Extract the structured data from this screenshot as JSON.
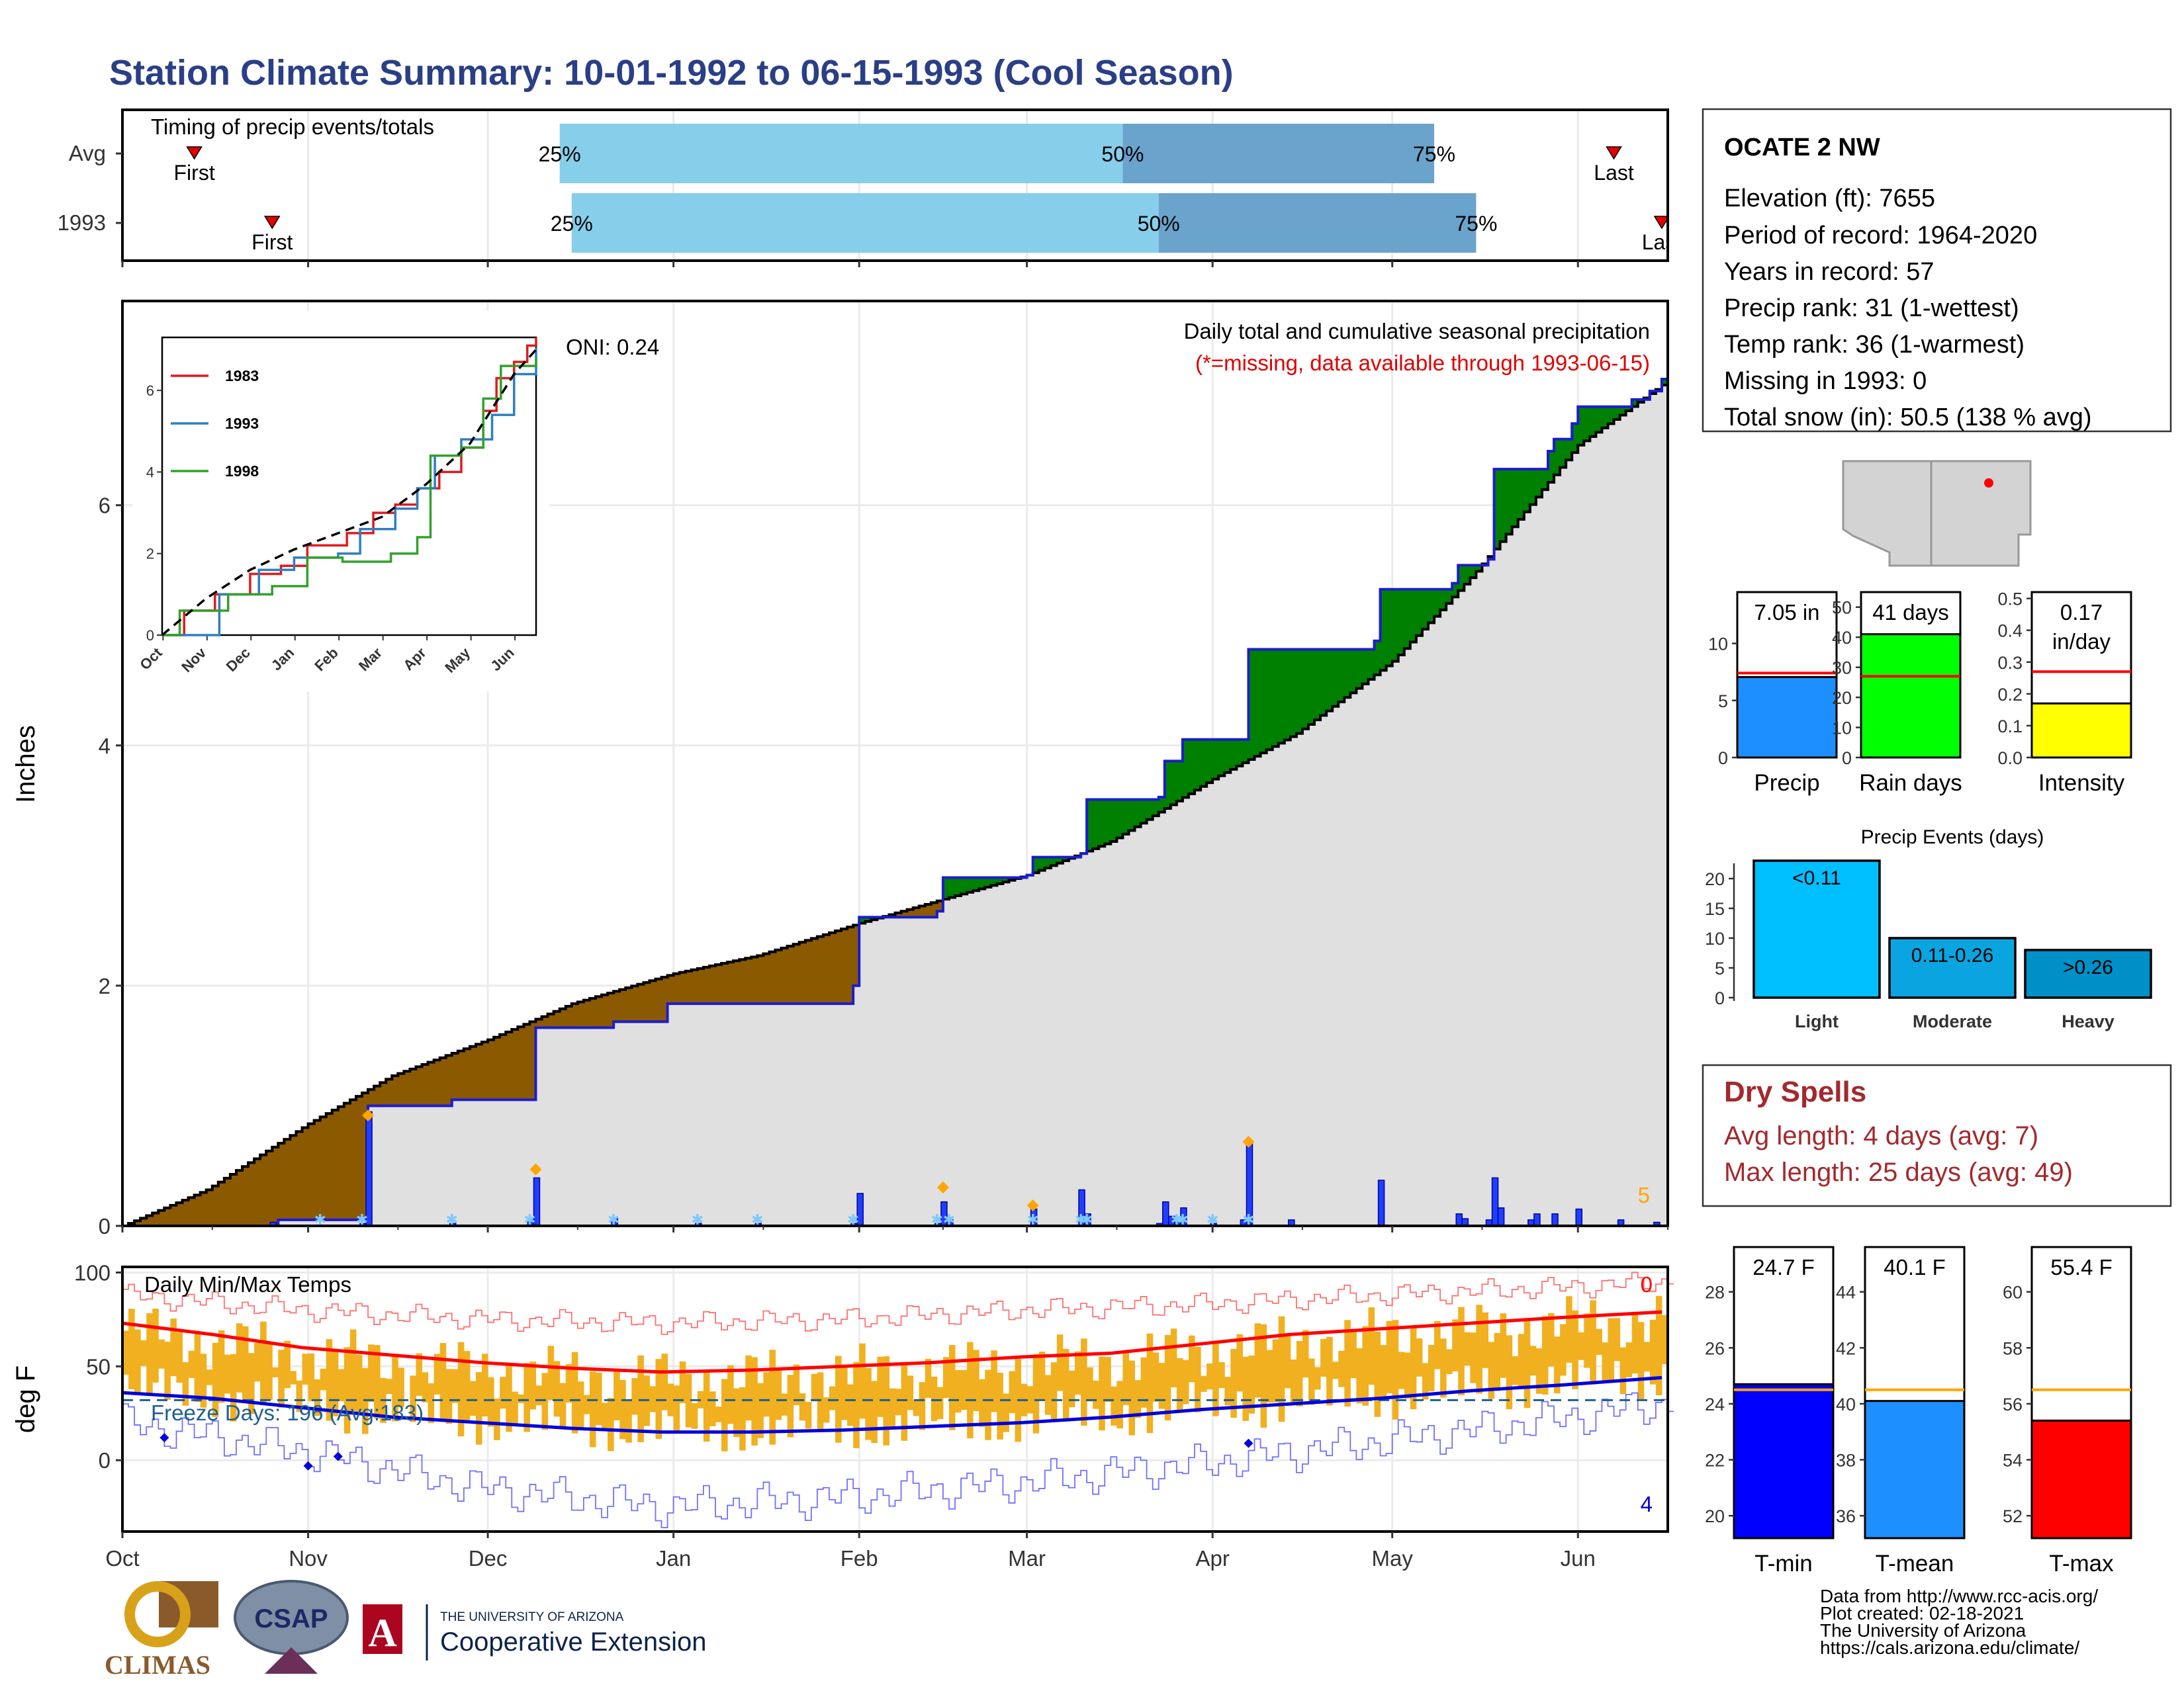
{
  "page": {
    "title": "Station Climate Summary: 10-01-1992 to 06-15-1993 (Cool Season)",
    "credits": [
      "Data from http://www.rcc-acis.org/",
      "Plot created: 02-18-2021",
      "The University of Arizona",
      "https://cals.arizona.edu/climate/"
    ],
    "logos": {
      "climas": "CLIMAS",
      "csap": "CSAP",
      "ua_line1": "THE UNIVERSITY OF ARIZONA",
      "ua_line2": "Cooperative Extension"
    },
    "colors": {
      "title": "#2a3f86",
      "surplus": "#008000",
      "deficit": "#8b5a00",
      "cumulative_fill": "#e0e0e0",
      "daily_bars": "#1f3fff",
      "temp_bars": "#f0b020",
      "dry_spells": "#a3292e"
    }
  },
  "chart_data": [
    {
      "id": "timing",
      "type": "bar",
      "title": "Timing of precip events/totals",
      "rows": [
        {
          "label": "Avg",
          "first_marker": "First",
          "last_marker": "Last",
          "first_date": "1992-10-13",
          "last_date": "1993-06-07",
          "p25": "1992-12-13",
          "p50": "1993-03-17",
          "p75": "1993-05-08"
        },
        {
          "label": "1993",
          "first_marker": "First",
          "last_marker": "Last",
          "first_date": "1992-10-26",
          "last_date": "1993-06-15",
          "p25": "1992-12-15",
          "p50": "1993-03-23",
          "p75": "1993-05-15"
        }
      ],
      "pct_labels": [
        "25%",
        "50%",
        "75%"
      ],
      "colors": {
        "light": "#87ceeb",
        "dark": "#6aa3cc",
        "marker": "#e00000"
      }
    },
    {
      "id": "precip",
      "type": "area",
      "title": "Daily total and cumulative seasonal precipitation",
      "subtitle": "(*=missing, data available through 1993-06-15)",
      "oni": "ONI: 0.24",
      "ylabel": "Inches",
      "ylim": [
        0,
        7.7
      ],
      "yticks": [
        0,
        2,
        4,
        6
      ],
      "xlabels": [
        "Oct",
        "Nov",
        "Dec",
        "Jan",
        "Feb",
        "Mar",
        "Apr",
        "May",
        "Jun"
      ],
      "corner_label": "5",
      "observed_cumulative": [
        [
          "1992-10-01",
          0
        ],
        [
          "1992-10-27",
          0.05
        ],
        [
          "1992-11-10",
          0.05
        ],
        [
          "1992-11-11",
          1.0
        ],
        [
          "1992-11-25",
          1.05
        ],
        [
          "1992-12-08",
          1.05
        ],
        [
          "1992-12-09",
          1.65
        ],
        [
          "1992-12-22",
          1.7
        ],
        [
          "1992-12-31",
          1.85
        ],
        [
          "1993-01-31",
          2.0
        ],
        [
          "1993-02-01",
          2.57
        ],
        [
          "1993-02-14",
          2.62
        ],
        [
          "1993-02-15",
          2.9
        ],
        [
          "1993-03-01",
          2.92
        ],
        [
          "1993-03-02",
          3.07
        ],
        [
          "1993-03-10",
          3.1
        ],
        [
          "1993-03-11",
          3.55
        ],
        [
          "1993-03-23",
          3.57
        ],
        [
          "1993-03-24",
          3.87
        ],
        [
          "1993-03-26",
          3.87
        ],
        [
          "1993-03-27",
          4.05
        ],
        [
          "1993-04-06",
          4.05
        ],
        [
          "1993-04-07",
          4.8
        ],
        [
          "1993-04-28",
          4.87
        ],
        [
          "1993-04-29",
          5.3
        ],
        [
          "1993-05-11",
          5.35
        ],
        [
          "1993-05-12",
          5.5
        ],
        [
          "1993-05-17",
          5.55
        ],
        [
          "1993-05-18",
          6.3
        ],
        [
          "1993-05-27",
          6.45
        ],
        [
          "1993-05-28",
          6.55
        ],
        [
          "1993-05-31",
          6.68
        ],
        [
          "1993-06-01",
          6.82
        ],
        [
          "1993-06-10",
          6.88
        ],
        [
          "1993-06-13",
          6.95
        ],
        [
          "1993-06-15",
          7.05
        ]
      ],
      "average_cumulative": [
        [
          "1992-10-01",
          0
        ],
        [
          "1992-10-15",
          0.3
        ],
        [
          "1992-11-01",
          0.85
        ],
        [
          "1992-11-15",
          1.25
        ],
        [
          "1992-12-01",
          1.55
        ],
        [
          "1992-12-15",
          1.85
        ],
        [
          "1993-01-01",
          2.1
        ],
        [
          "1993-01-15",
          2.25
        ],
        [
          "1993-02-01",
          2.52
        ],
        [
          "1993-02-15",
          2.72
        ],
        [
          "1993-03-01",
          2.92
        ],
        [
          "1993-03-15",
          3.2
        ],
        [
          "1993-04-01",
          3.72
        ],
        [
          "1993-04-15",
          4.1
        ],
        [
          "1993-05-01",
          4.7
        ],
        [
          "1993-05-15",
          5.45
        ],
        [
          "1993-06-01",
          6.5
        ],
        [
          "1993-06-15",
          7.0
        ]
      ],
      "daily_totals": [
        [
          "1992-10-26",
          0.03
        ],
        [
          "1992-11-10",
          0.02
        ],
        [
          "1992-11-11",
          0.95
        ],
        [
          "1992-11-25",
          0.02
        ],
        [
          "1992-12-08",
          0.05
        ],
        [
          "1992-12-09",
          0.4
        ],
        [
          "1992-12-22",
          0.06
        ],
        [
          "1993-01-05",
          0.02
        ],
        [
          "1993-01-15",
          0.02
        ],
        [
          "1993-01-31",
          0.02
        ],
        [
          "1993-02-01",
          0.27
        ],
        [
          "1993-02-14",
          0.02
        ],
        [
          "1993-02-15",
          0.2
        ],
        [
          "1993-02-16",
          0.05
        ],
        [
          "1993-03-02",
          0.14
        ],
        [
          "1993-03-10",
          0.3
        ],
        [
          "1993-03-11",
          0.1
        ],
        [
          "1993-03-23",
          0.02
        ],
        [
          "1993-03-24",
          0.2
        ],
        [
          "1993-03-25",
          0.08
        ],
        [
          "1993-03-26",
          0.03
        ],
        [
          "1993-03-27",
          0.15
        ],
        [
          "1993-04-01",
          0.02
        ],
        [
          "1993-04-06",
          0.05
        ],
        [
          "1993-04-07",
          0.7
        ],
        [
          "1993-04-14",
          0.05
        ],
        [
          "1993-04-29",
          0.38
        ],
        [
          "1993-05-12",
          0.1
        ],
        [
          "1993-05-13",
          0.06
        ],
        [
          "1993-05-17",
          0.05
        ],
        [
          "1993-05-18",
          0.4
        ],
        [
          "1993-05-19",
          0.15
        ],
        [
          "1993-05-24",
          0.05
        ],
        [
          "1993-05-25",
          0.1
        ],
        [
          "1993-05-28",
          0.1
        ],
        [
          "1993-06-01",
          0.14
        ],
        [
          "1993-06-08",
          0.05
        ],
        [
          "1993-06-14",
          0.03
        ]
      ],
      "event_markers": [
        [
          "1992-11-11",
          0.92
        ],
        [
          "1992-12-09",
          0.47
        ],
        [
          "1993-02-15",
          0.32
        ],
        [
          "1993-03-02",
          0.17
        ],
        [
          "1993-04-07",
          0.7
        ]
      ],
      "snow_markers": [
        "1992-11-03",
        "1992-11-10",
        "1992-11-25",
        "1992-12-08",
        "1992-12-22",
        "1993-01-05",
        "1993-01-15",
        "1993-01-31",
        "1993-02-14",
        "1993-02-16",
        "1993-03-02",
        "1993-03-10",
        "1993-03-11",
        "1993-03-26",
        "1993-03-27",
        "1993-04-01",
        "1993-04-07"
      ]
    },
    {
      "id": "inset",
      "type": "line",
      "xlabels": [
        "Oct",
        "Nov",
        "Dec",
        "Jan",
        "Feb",
        "Mar",
        "Apr",
        "May",
        "Jun"
      ],
      "yticks": [
        0,
        2,
        4,
        6
      ],
      "ylim": [
        0,
        7.3
      ],
      "series": [
        {
          "name": "1983",
          "color": "#e31a1c",
          "values": [
            [
              0,
              0
            ],
            [
              0.5,
              0.6
            ],
            [
              1.2,
              1.0
            ],
            [
              2.0,
              1.5
            ],
            [
              2.7,
              1.7
            ],
            [
              3.3,
              2.2
            ],
            [
              4.2,
              2.5
            ],
            [
              4.8,
              3.0
            ],
            [
              5.3,
              3.2
            ],
            [
              5.8,
              3.6
            ],
            [
              6.3,
              4.0
            ],
            [
              6.8,
              4.6
            ],
            [
              7.3,
              5.5
            ],
            [
              7.6,
              6.3
            ],
            [
              8.0,
              6.7
            ],
            [
              8.3,
              7.1
            ],
            [
              8.5,
              7.3
            ]
          ]
        },
        {
          "name": "1993",
          "color": "#2f7fc1",
          "values": [
            [
              0,
              0
            ],
            [
              0.8,
              0
            ],
            [
              1.3,
              1.0
            ],
            [
              2.2,
              1.6
            ],
            [
              3.0,
              1.9
            ],
            [
              4.0,
              2.0
            ],
            [
              4.5,
              2.6
            ],
            [
              5.3,
              3.1
            ],
            [
              5.8,
              3.6
            ],
            [
              6.2,
              4.4
            ],
            [
              6.8,
              4.8
            ],
            [
              7.5,
              5.4
            ],
            [
              8.0,
              6.4
            ],
            [
              8.5,
              7.05
            ]
          ]
        },
        {
          "name": "1998",
          "color": "#33a02c",
          "values": [
            [
              0,
              0
            ],
            [
              0.4,
              0.6
            ],
            [
              1.5,
              1.0
            ],
            [
              2.5,
              1.2
            ],
            [
              3.3,
              1.9
            ],
            [
              4.1,
              1.8
            ],
            [
              5.2,
              2.0
            ],
            [
              5.8,
              2.4
            ],
            [
              6.1,
              4.4
            ],
            [
              6.8,
              4.6
            ],
            [
              7.3,
              5.8
            ],
            [
              7.7,
              6.6
            ],
            [
              8.3,
              6.6
            ],
            [
              8.5,
              6.8
            ]
          ]
        }
      ],
      "average": [
        [
          0,
          0
        ],
        [
          1,
          0.9
        ],
        [
          2,
          1.6
        ],
        [
          3,
          2.1
        ],
        [
          4,
          2.5
        ],
        [
          5,
          2.9
        ],
        [
          6,
          3.7
        ],
        [
          7,
          4.7
        ],
        [
          8,
          6.4
        ],
        [
          8.5,
          7.0
        ]
      ]
    },
    {
      "id": "temps",
      "type": "line",
      "title": "Daily Min/Max Temps",
      "ylabel": "deg F",
      "ylim": [
        -38,
        103
      ],
      "yticks": [
        0,
        50,
        100
      ],
      "xlabels": [
        "Oct",
        "Nov",
        "Dec",
        "Jan",
        "Feb",
        "Mar",
        "Apr",
        "May",
        "Jun"
      ],
      "freeze_label": "Freeze Days: 196 (Avg:183)",
      "freeze_line": 32,
      "count_top": "0",
      "count_bottom": "4",
      "avg_max": [
        [
          0,
          73
        ],
        [
          15,
          67
        ],
        [
          30,
          60
        ],
        [
          45,
          56
        ],
        [
          60,
          52
        ],
        [
          75,
          49
        ],
        [
          90,
          47
        ],
        [
          105,
          48
        ],
        [
          120,
          50
        ],
        [
          135,
          52
        ],
        [
          150,
          55
        ],
        [
          165,
          57
        ],
        [
          180,
          62
        ],
        [
          195,
          67
        ],
        [
          210,
          70
        ],
        [
          225,
          73
        ],
        [
          240,
          76
        ],
        [
          257,
          79
        ]
      ],
      "avg_min": [
        [
          0,
          36
        ],
        [
          15,
          33
        ],
        [
          30,
          28
        ],
        [
          45,
          23
        ],
        [
          60,
          20
        ],
        [
          75,
          17
        ],
        [
          90,
          15
        ],
        [
          105,
          15
        ],
        [
          120,
          16
        ],
        [
          135,
          18
        ],
        [
          150,
          20
        ],
        [
          165,
          23
        ],
        [
          180,
          27
        ],
        [
          195,
          30
        ],
        [
          210,
          33
        ],
        [
          225,
          37
        ],
        [
          240,
          40
        ],
        [
          257,
          44
        ]
      ],
      "record_max": [
        [
          0,
          88
        ],
        [
          30,
          80
        ],
        [
          60,
          75
        ],
        [
          90,
          73
        ],
        [
          120,
          75
        ],
        [
          150,
          80
        ],
        [
          180,
          83
        ],
        [
          210,
          88
        ],
        [
          240,
          92
        ],
        [
          257,
          95
        ]
      ],
      "record_min": [
        [
          0,
          20
        ],
        [
          30,
          5
        ],
        [
          60,
          -15
        ],
        [
          90,
          -25
        ],
        [
          120,
          -20
        ],
        [
          150,
          -12
        ],
        [
          180,
          -2
        ],
        [
          210,
          10
        ],
        [
          240,
          22
        ],
        [
          257,
          30
        ]
      ],
      "cold_markers": [
        [
          7,
          12
        ],
        [
          31,
          -3
        ],
        [
          36,
          2
        ],
        [
          188,
          9
        ]
      ],
      "colors": {
        "max": "#ff0000",
        "min": "#0000dd",
        "bars": "#f0b020",
        "freeze": "#1f5f8f"
      }
    },
    {
      "id": "season_bars",
      "type": "bar",
      "panels": [
        {
          "xlabel": "Precip",
          "value": 7.05,
          "label": "7.05 in",
          "avg": 7.4,
          "ylim": [
            0,
            14.5
          ],
          "yticks": [
            0,
            5,
            10
          ],
          "color": "#1e8fff"
        },
        {
          "xlabel": "Rain days",
          "value": 41,
          "label": "41 days",
          "avg": 27,
          "ylim": [
            0,
            55
          ],
          "yticks": [
            0,
            10,
            20,
            30,
            40,
            50
          ],
          "color": "#00ff00"
        },
        {
          "xlabel": "Intensity",
          "value": 0.17,
          "label": "0.17 in/day",
          "label_lines": [
            "0.17",
            "in/day"
          ],
          "avg": 0.27,
          "ylim": [
            0,
            0.52
          ],
          "yticks": [
            0.0,
            0.1,
            0.2,
            0.3,
            0.4,
            0.5
          ],
          "ytick_labels": [
            "0.0",
            "0.1",
            "0.2",
            "0.3",
            "0.4",
            "0.5"
          ],
          "color": "#ffff00"
        }
      ]
    },
    {
      "id": "precip_events",
      "type": "bar",
      "title": "Precip Events (days)",
      "categories": [
        "Light",
        "Moderate",
        "Heavy"
      ],
      "bar_labels": [
        "<0.11",
        "0.11-0.26",
        ">0.26"
      ],
      "values": [
        23,
        10,
        8
      ],
      "ylim": [
        0,
        22
      ],
      "yticks": [
        0,
        5,
        10,
        15,
        20
      ],
      "colors": [
        "#00bfff",
        "#0aa5e0",
        "#0090c8"
      ]
    },
    {
      "id": "temp_bars",
      "type": "bar",
      "panels": [
        {
          "xlabel": "T-min",
          "value": 24.7,
          "label": "24.7 F",
          "avg": 24.5,
          "ylim": [
            19.2,
            29.6
          ],
          "yticks": [
            20,
            22,
            24,
            26,
            28
          ],
          "color": "#0000ff"
        },
        {
          "xlabel": "T-mean",
          "value": 40.1,
          "label": "40.1 F",
          "avg": 40.5,
          "ylim": [
            35.2,
            45.6
          ],
          "yticks": [
            36,
            38,
            40,
            42,
            44
          ],
          "color": "#1e8fff"
        },
        {
          "xlabel": "T-max",
          "value": 55.4,
          "label": "55.4 F",
          "avg": 56.5,
          "ylim": [
            51.2,
            61.6
          ],
          "yticks": [
            52,
            54,
            56,
            58,
            60
          ],
          "color": "#ff0000"
        }
      ]
    }
  ],
  "station": {
    "name": "OCATE 2 NW",
    "lines": [
      "Elevation (ft): 7655",
      "Period of record: 1964-2020",
      "Years in record: 57",
      "Precip rank: 31 (1-wettest)",
      "Temp rank: 36 (1-warmest)",
      "Missing in 1993: 0",
      "Total snow (in): 50.5 (138 % avg)"
    ]
  },
  "dry_spells": {
    "title": "Dry Spells",
    "avg": "Avg length: 4 days (avg: 7)",
    "max": "Max length: 25 days (avg: 49)"
  }
}
